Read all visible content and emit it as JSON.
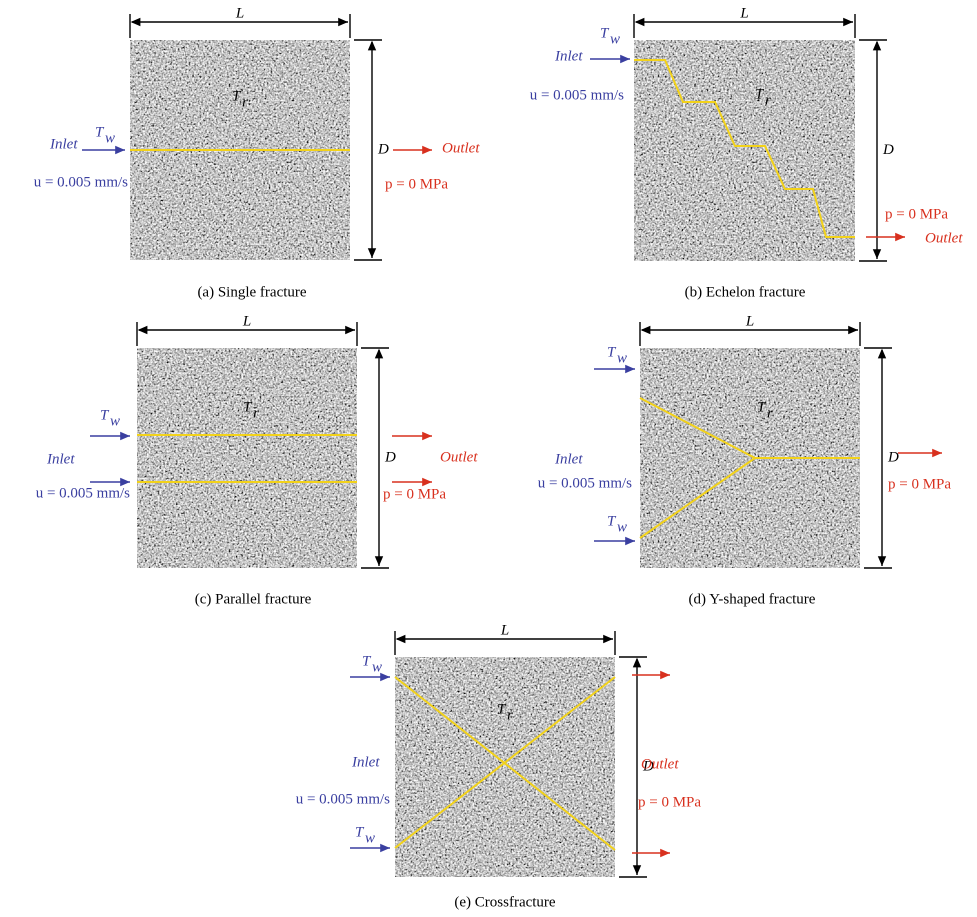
{
  "panels": [
    {
      "caption": "(a) Single fracture",
      "length_label": "L",
      "depth_label": "D",
      "rock_temp": {
        "base": "T",
        "sub": "r"
      },
      "inlet": "Inlet",
      "water_temp": [
        {
          "base": "T",
          "sub": "w"
        }
      ],
      "velocity": "u = 0.005 mm/s",
      "outlet": "Outlet",
      "pressure": "p = 0 MPa"
    },
    {
      "caption": "(b) Echelon fracture",
      "length_label": "L",
      "depth_label": "D",
      "rock_temp": {
        "base": "T",
        "sub": "r"
      },
      "inlet": "Inlet",
      "water_temp": [
        {
          "base": "T",
          "sub": "w"
        }
      ],
      "velocity": "u = 0.005 mm/s",
      "outlet": "Outlet",
      "pressure": "p = 0 MPa"
    },
    {
      "caption": "(c) Parallel fracture",
      "length_label": "L",
      "depth_label": "D",
      "rock_temp": {
        "base": "T",
        "sub": "r"
      },
      "inlet": "Inlet",
      "water_temp": [
        {
          "base": "T",
          "sub": "w"
        }
      ],
      "velocity": "u = 0.005 mm/s",
      "outlet": "Outlet",
      "pressure": "p = 0 MPa"
    },
    {
      "caption": "(d) Y-shaped fracture",
      "length_label": "L",
      "depth_label": "D",
      "rock_temp": {
        "base": "T",
        "sub": "r"
      },
      "inlet": "Inlet",
      "water_temp": [
        {
          "base": "T",
          "sub": "w"
        },
        {
          "base": "T",
          "sub": "w"
        }
      ],
      "velocity": "u = 0.005 mm/s",
      "pressure": "p = 0 MPa"
    },
    {
      "caption": "(e) Crossfracture",
      "length_label": "L",
      "depth_label": "D",
      "rock_temp": {
        "base": "T",
        "sub": "r"
      },
      "inlet": "Inlet",
      "water_temp": [
        {
          "base": "T",
          "sub": "w"
        },
        {
          "base": "T",
          "sub": "w"
        }
      ],
      "velocity": "u = 0.005 mm/s",
      "outlet": "Outlet",
      "pressure": "p = 0 MPa"
    }
  ]
}
